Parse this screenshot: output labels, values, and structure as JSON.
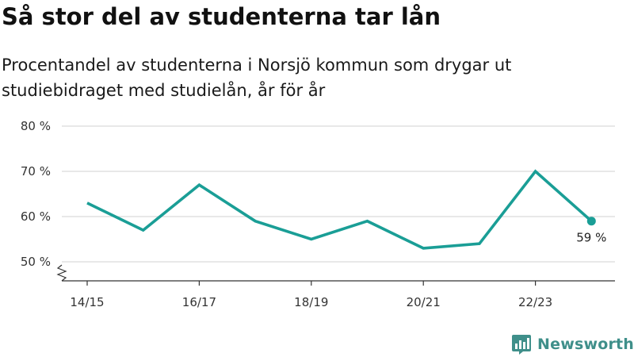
{
  "header": {
    "title": "Så stor del av studenterna tar lån",
    "subtitle": "Procentandel av studenterna i Norsjö kommun som drygar ut studiebidraget med studielån, år för år"
  },
  "brand": {
    "name": "Newsworthy",
    "color": "#3f8f8a"
  },
  "chart_data": {
    "type": "line",
    "x": [
      "14/15",
      "15/16",
      "16/17",
      "17/18",
      "18/19",
      "19/20",
      "20/21",
      "21/22",
      "22/23",
      "23/24"
    ],
    "x_tick_labels": [
      "14/15",
      "16/17",
      "18/19",
      "20/21",
      "22/23"
    ],
    "series": [
      {
        "values": [
          63,
          57,
          67,
          59,
          55,
          59,
          53,
          54,
          70,
          59
        ],
        "color": "#1a9e96"
      }
    ],
    "y_tick_labels": [
      "50 %",
      "60 %",
      "70 %",
      "80 %"
    ],
    "y_ticks": [
      50,
      60,
      70,
      80
    ],
    "ylim": [
      50,
      80
    ],
    "y_axis_break": true,
    "grid": true,
    "last_point_label": "59 %",
    "grid_color": "#d9d9d9"
  }
}
